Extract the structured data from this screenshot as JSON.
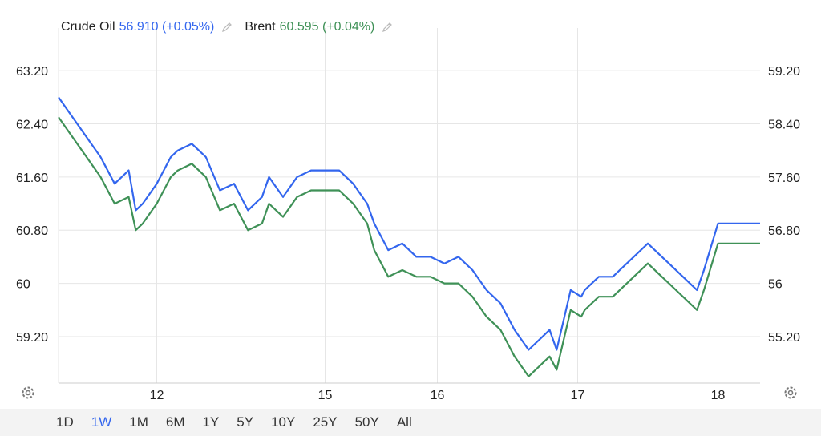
{
  "legend": {
    "series1_name": "Crude Oil",
    "series1_value": "56.910 (+0.05%)",
    "series2_name": "Brent",
    "series2_value": "60.595 (+0.04%)",
    "edit_icon": "pencil-icon"
  },
  "colors": {
    "crude": "#3366ee",
    "brent": "#3f9157",
    "grid": "#e6e6e6"
  },
  "settings_icon": "gear-icon",
  "toolbar": {
    "ranges": [
      "1D",
      "1W",
      "1M",
      "6M",
      "1Y",
      "5Y",
      "10Y",
      "25Y",
      "50Y",
      "All"
    ],
    "active": "1W"
  },
  "chart_data": {
    "type": "line",
    "grid": true,
    "x_tick_labels": [
      "12",
      "15",
      "16",
      "17",
      "18"
    ],
    "x_tick_positions": [
      0.14,
      0.38,
      0.54,
      0.74,
      0.94
    ],
    "x_range": [
      0,
      1
    ],
    "left_axis": {
      "ticks": [
        "63.20",
        "62.40",
        "61.60",
        "60.80",
        "60",
        "59.20"
      ],
      "range": [
        58.5,
        63.6
      ]
    },
    "right_axis": {
      "ticks": [
        "59.20",
        "58.40",
        "57.60",
        "56.80",
        "56",
        "55.20"
      ],
      "range": [
        54.5,
        59.6
      ]
    },
    "series": [
      {
        "name": "Crude Oil",
        "axis": "right",
        "x": [
          0.0,
          0.02,
          0.04,
          0.06,
          0.08,
          0.1,
          0.11,
          0.12,
          0.14,
          0.16,
          0.17,
          0.19,
          0.21,
          0.23,
          0.25,
          0.27,
          0.29,
          0.3,
          0.32,
          0.34,
          0.36,
          0.38,
          0.4,
          0.42,
          0.44,
          0.45,
          0.47,
          0.49,
          0.51,
          0.53,
          0.55,
          0.57,
          0.59,
          0.61,
          0.63,
          0.65,
          0.67,
          0.69,
          0.7,
          0.71,
          0.73,
          0.745,
          0.75,
          0.77,
          0.79,
          0.8,
          0.82,
          0.84,
          0.86,
          0.87,
          0.89,
          0.91,
          0.92,
          0.94,
          0.96,
          0.98,
          1.0
        ],
        "values": [
          58.8,
          58.5,
          58.2,
          57.9,
          57.5,
          57.7,
          57.1,
          57.2,
          57.5,
          57.9,
          58.0,
          58.1,
          57.9,
          57.4,
          57.5,
          57.1,
          57.3,
          57.6,
          57.3,
          57.6,
          57.7,
          57.7,
          57.7,
          57.5,
          57.2,
          56.9,
          56.5,
          56.6,
          56.4,
          56.4,
          56.3,
          56.4,
          56.2,
          55.9,
          55.7,
          55.3,
          55.0,
          55.2,
          55.3,
          55.0,
          55.9,
          55.8,
          55.9,
          56.1,
          56.1,
          56.2,
          56.4,
          56.6,
          56.4,
          56.3,
          56.1,
          55.9,
          56.2,
          56.9,
          56.9,
          56.9,
          56.9
        ]
      },
      {
        "name": "Brent",
        "axis": "left",
        "x": [
          0.0,
          0.02,
          0.04,
          0.06,
          0.08,
          0.1,
          0.11,
          0.12,
          0.14,
          0.16,
          0.17,
          0.19,
          0.21,
          0.23,
          0.25,
          0.27,
          0.29,
          0.3,
          0.32,
          0.34,
          0.36,
          0.38,
          0.4,
          0.42,
          0.44,
          0.45,
          0.47,
          0.49,
          0.51,
          0.53,
          0.55,
          0.57,
          0.59,
          0.61,
          0.63,
          0.65,
          0.67,
          0.69,
          0.7,
          0.71,
          0.73,
          0.745,
          0.75,
          0.77,
          0.79,
          0.8,
          0.82,
          0.84,
          0.86,
          0.87,
          0.89,
          0.91,
          0.92,
          0.94,
          0.96,
          0.98,
          1.0
        ],
        "values": [
          62.5,
          62.2,
          61.9,
          61.6,
          61.2,
          61.3,
          60.8,
          60.9,
          61.2,
          61.6,
          61.7,
          61.8,
          61.6,
          61.1,
          61.2,
          60.8,
          60.9,
          61.2,
          61.0,
          61.3,
          61.4,
          61.4,
          61.4,
          61.2,
          60.9,
          60.5,
          60.1,
          60.2,
          60.1,
          60.1,
          60.0,
          60.0,
          59.8,
          59.5,
          59.3,
          58.9,
          58.6,
          58.8,
          58.9,
          58.7,
          59.6,
          59.5,
          59.6,
          59.8,
          59.8,
          59.9,
          60.1,
          60.3,
          60.1,
          60.0,
          59.8,
          59.6,
          59.9,
          60.6,
          60.6,
          60.6,
          60.6
        ]
      }
    ]
  }
}
